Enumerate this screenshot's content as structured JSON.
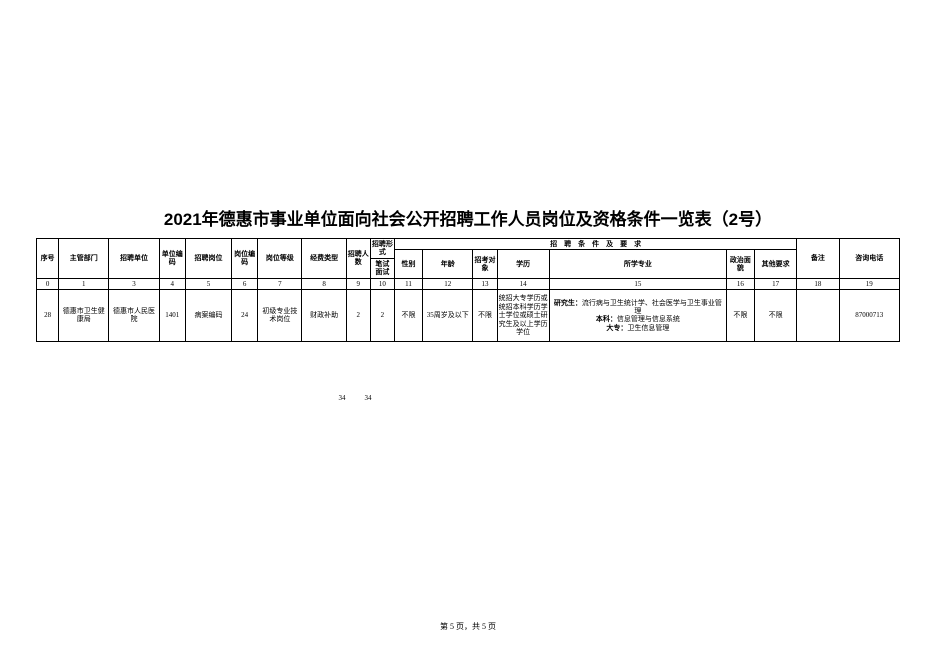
{
  "title": "2021年德惠市事业单位面向社会公开招聘工作人员岗位及资格条件一览表（2号）",
  "header": {
    "col0": "序号",
    "col1": "主管部门",
    "col2": "招聘单位",
    "col3": "单位编码",
    "col4": "招聘岗位",
    "col5": "岗位编码",
    "col6": "岗位等级",
    "col7": "经费类型",
    "col8": "招聘人数",
    "col9_group": "招聘形式",
    "col9a": "笔试",
    "col9b": "面试",
    "req_group": "招　聘　条　件　及　要　求",
    "col10": "性别",
    "col11": "年龄",
    "col12": "招考对象",
    "col13": "学历",
    "col14": "所学专业",
    "col15": "政治面貌",
    "col16": "其他要求",
    "col17": "备注",
    "col18": "咨询电话"
  },
  "indexRow": [
    "0",
    "1",
    "3",
    "4",
    "5",
    "6",
    "7",
    "8",
    "9",
    "10",
    "11",
    "12",
    "13",
    "14",
    "15",
    "16",
    "17",
    "18",
    "19"
  ],
  "row": {
    "seq": "28",
    "dept": "德惠市卫生健康局",
    "unit": "德惠市人民医院",
    "unitCode": "1401",
    "position": "病案编码",
    "posCode": "24",
    "grade": "初级专业技术岗位",
    "fund": "财政补助",
    "count": "2",
    "exam": "2",
    "gender": "不限",
    "age": "35周岁及以下",
    "target": "不限",
    "edu": "统招大专学历或统招本科学历学士学位或硕士研究生及以上学历学位",
    "major": "研究生：流行病与卫生统计学、社会医学与卫生事业管理\n本科：信息管理与信息系统\n大专：卫生信息管理",
    "pol": "不限",
    "other": "不限",
    "remark": "",
    "phone": "87000713"
  },
  "totals": {
    "count": "34",
    "exam": "34"
  },
  "footer": "第 5 页，共 5 页"
}
